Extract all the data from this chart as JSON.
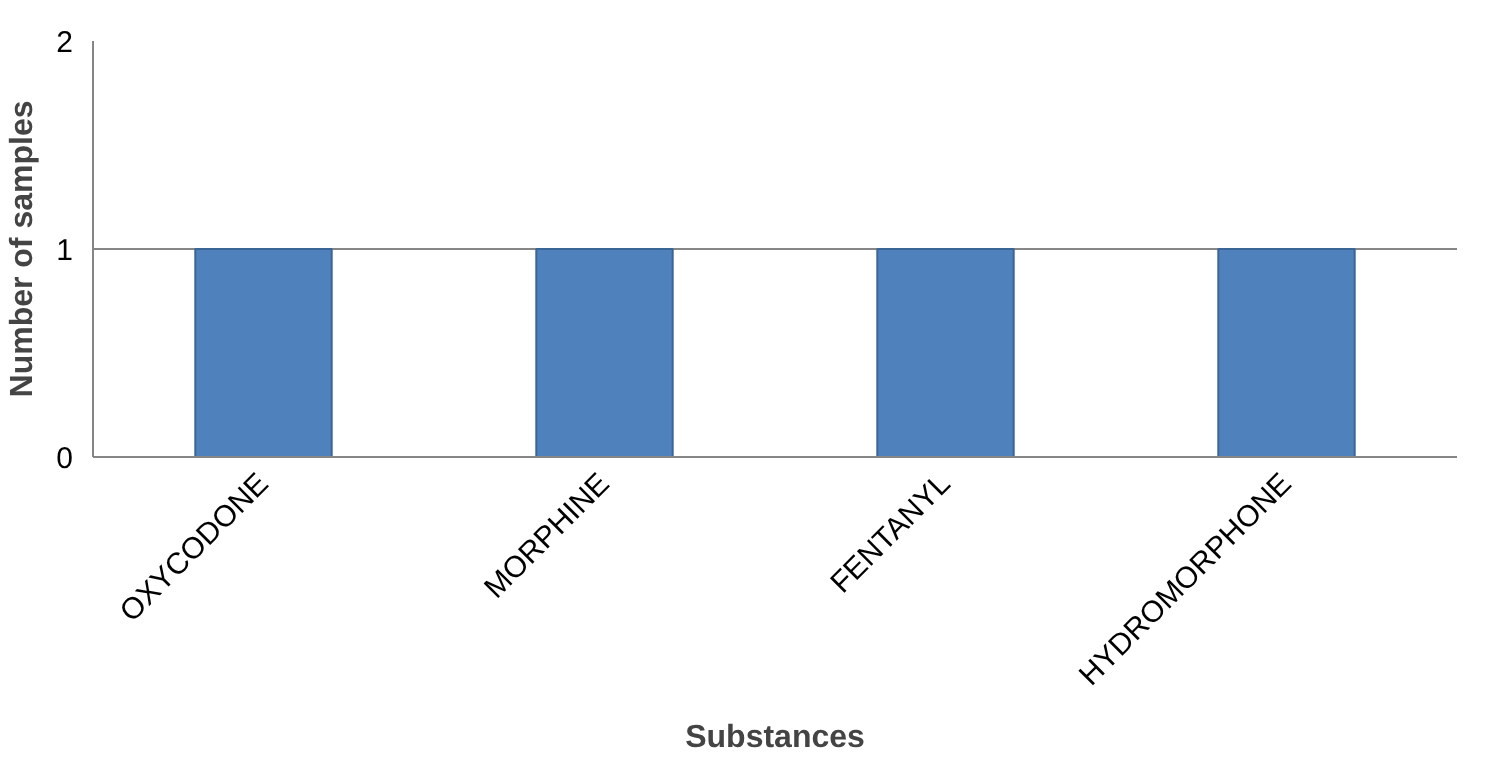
{
  "chart_data": {
    "type": "bar",
    "xlabel": "Substances",
    "ylabel": "Number of samples",
    "categories": [
      "OXYCODONE",
      "MORPHINE",
      "FENTANYL",
      "HYDROMORPHONE"
    ],
    "values": [
      1,
      1,
      1,
      1
    ],
    "color": "#4f81bd",
    "ylim": [
      0,
      2
    ],
    "yticks": [
      0,
      1,
      2
    ],
    "grid": "y"
  }
}
